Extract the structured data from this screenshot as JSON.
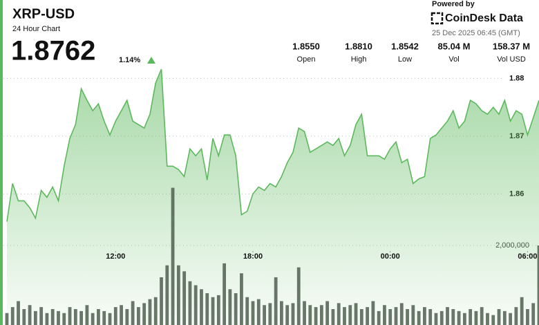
{
  "header": {
    "symbol": "XRP-USD",
    "subtitle": "24 Hour Chart",
    "price": "1.8762",
    "change": "1.14%"
  },
  "stats": [
    {
      "value": "1.8550",
      "label": "Open"
    },
    {
      "value": "1.8810",
      "label": "High"
    },
    {
      "value": "1.8542",
      "label": "Low"
    },
    {
      "value": "85.04 M",
      "label": "Vol"
    },
    {
      "value": "158.37 M",
      "label": "Vol USD"
    }
  ],
  "branding": {
    "powered": "Powered by",
    "name": "CoinDesk Data",
    "timestamp": "25 Dec 2025 06:45 (GMT)"
  },
  "chart_data": {
    "type": "area",
    "x": [
      7.25,
      7.5,
      7.75,
      8,
      8.25,
      8.5,
      8.75,
      9,
      9.25,
      9.5,
      9.75,
      10,
      10.25,
      10.5,
      10.75,
      11,
      11.25,
      11.5,
      11.75,
      12,
      12.25,
      12.5,
      12.75,
      13,
      13.25,
      13.5,
      13.75,
      14,
      14.25,
      14.5,
      14.75,
      15,
      15.25,
      15.5,
      15.75,
      16,
      16.25,
      16.5,
      16.75,
      17,
      17.25,
      17.5,
      17.75,
      18,
      18.25,
      18.5,
      18.75,
      19,
      19.25,
      19.5,
      19.75,
      20,
      20.25,
      20.5,
      20.75,
      21,
      21.25,
      21.5,
      21.75,
      22,
      22.25,
      22.5,
      22.75,
      23,
      23.25,
      23.5,
      23.75,
      24,
      24.25,
      24.5,
      24.75,
      25,
      25.25,
      25.5,
      25.75,
      26,
      26.25,
      26.5,
      26.75,
      27,
      27.25,
      27.5,
      27.75,
      28,
      28.25,
      28.5,
      28.75,
      29,
      29.25,
      29.5,
      29.75,
      30,
      30.25,
      30.5
    ],
    "series": [
      {
        "type": "area",
        "color": "#5cb85c",
        "values": [
          1.8552,
          1.8618,
          1.8588,
          1.8588,
          1.8576,
          1.8558,
          1.8606,
          1.8594,
          1.8612,
          1.8588,
          1.8648,
          1.8696,
          1.872,
          1.8782,
          1.8762,
          1.8744,
          1.8756,
          1.8726,
          1.8702,
          1.8726,
          1.8744,
          1.8762,
          1.8726,
          1.872,
          1.8714,
          1.8738,
          1.8792,
          1.8816,
          1.8648,
          1.8648,
          1.8642,
          1.863,
          1.8678,
          1.8666,
          1.8678,
          1.8624,
          1.8696,
          1.8666,
          1.8702,
          1.8702,
          1.8666,
          1.8564,
          1.857,
          1.86,
          1.8612,
          1.8606,
          1.8618,
          1.8612,
          1.863,
          1.8654,
          1.8672,
          1.8714,
          1.8708,
          1.8672,
          1.8678,
          1.8684,
          1.869,
          1.8684,
          1.8696,
          1.8666,
          1.8684,
          1.872,
          1.8738,
          1.8666,
          1.8666,
          1.8666,
          1.866,
          1.8678,
          1.869,
          1.8654,
          1.866,
          1.8618,
          1.8626,
          1.863,
          1.8696,
          1.8702,
          1.8714,
          1.8726,
          1.8744,
          1.8714,
          1.8726,
          1.8762,
          1.8756,
          1.8744,
          1.8738,
          1.875,
          1.8738,
          1.8762,
          1.8726,
          1.8744,
          1.8738,
          1.8702,
          1.8732,
          1.8762
        ]
      },
      {
        "type": "bar",
        "axis": "y2",
        "color": "#4f5f4f",
        "values": [
          300000,
          450000,
          600000,
          400000,
          500000,
          350000,
          450000,
          300000,
          400000,
          350000,
          300000,
          450000,
          400000,
          350000,
          500000,
          300000,
          400000,
          350000,
          300000,
          450000,
          500000,
          400000,
          600000,
          450000,
          550000,
          650000,
          700000,
          1200000,
          1500000,
          3450000,
          1500000,
          1350000,
          1100000,
          1000000,
          900000,
          800000,
          700000,
          750000,
          1550000,
          900000,
          800000,
          1300000,
          700000,
          600000,
          650000,
          500000,
          550000,
          1200000,
          600000,
          500000,
          550000,
          1450000,
          600000,
          500000,
          450000,
          500000,
          600000,
          400000,
          550000,
          450000,
          500000,
          550000,
          400000,
          450000,
          600000,
          350000,
          500000,
          400000,
          450000,
          550000,
          400000,
          500000,
          350000,
          450000,
          400000,
          300000,
          350000,
          450000,
          400000,
          350000,
          300000,
          400000,
          350000,
          450000,
          300000,
          250000,
          400000,
          350000,
          300000,
          450000,
          700000,
          400000,
          550000,
          2000000
        ]
      }
    ],
    "xlim": [
      7.1,
      30.5
    ],
    "xticks": [
      {
        "value": 12,
        "label": "12:00"
      },
      {
        "value": 18,
        "label": "18:00"
      },
      {
        "value": 24,
        "label": "00:00"
      },
      {
        "value": 30,
        "label": "06:00"
      }
    ],
    "ylim": [
      1.8373,
      1.8822
    ],
    "yticks": [
      1.86,
      1.87,
      1.88
    ],
    "y2lim": [
      0,
      6520000
    ],
    "y2ticks": [
      {
        "value": 2000000,
        "label": "2,000,000"
      }
    ],
    "grid": true
  }
}
